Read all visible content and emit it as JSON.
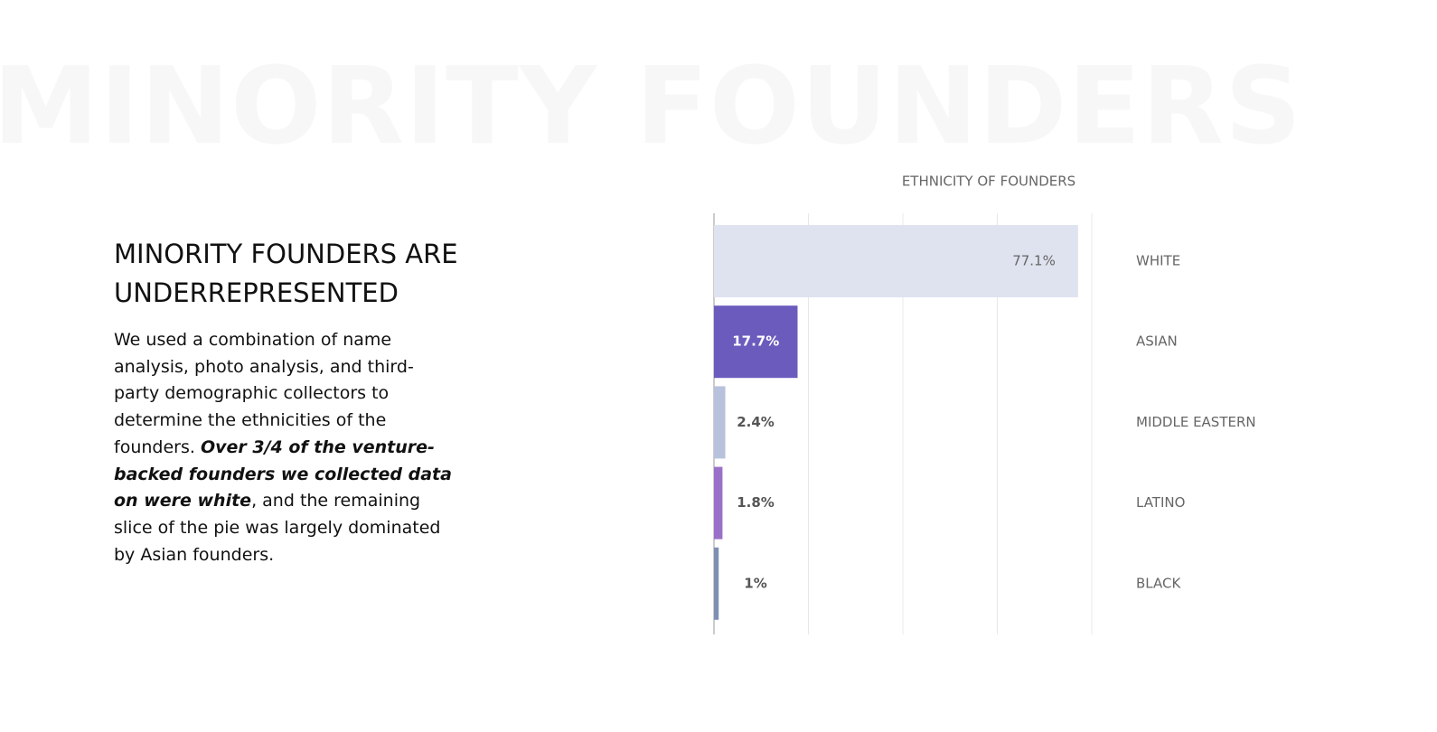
{
  "background_title": "MINORITY FOUNDERS",
  "heading": "MINORITY FOUNDERS ARE UNDERREPRESENTED",
  "paragraph": [
    {
      "text": "We used a combination of name analysis, photo analysis, and third-party demographic collectors to determine the ethnicities of the founders. ",
      "emphasis": false
    },
    {
      "text": "Over 3/4 of the venture-backed founders we collected data on were white",
      "emphasis": true
    },
    {
      "text": ", and the remaining slice of the pie was largely dominated by Asian founders.",
      "emphasis": false
    }
  ],
  "chart_data": {
    "type": "bar",
    "orientation": "horizontal",
    "title": "ETHNICITY OF FOUNDERS",
    "categories": [
      "WHITE",
      "ASIAN",
      "MIDDLE EASTERN",
      "LATINO",
      "BLACK"
    ],
    "values": [
      77.1,
      17.7,
      2.4,
      1.8,
      1
    ],
    "value_labels": [
      "77.1%",
      "17.7%",
      "2.4%",
      "1.8%",
      "1%"
    ],
    "colors": [
      "#dfe2ef",
      "#6a5bbd",
      "#b9c2dc",
      "#9a70c8",
      "#7f8fb3"
    ],
    "xlim": [
      0,
      80
    ],
    "xticks": [
      20,
      40,
      60,
      80
    ],
    "grid": true
  }
}
